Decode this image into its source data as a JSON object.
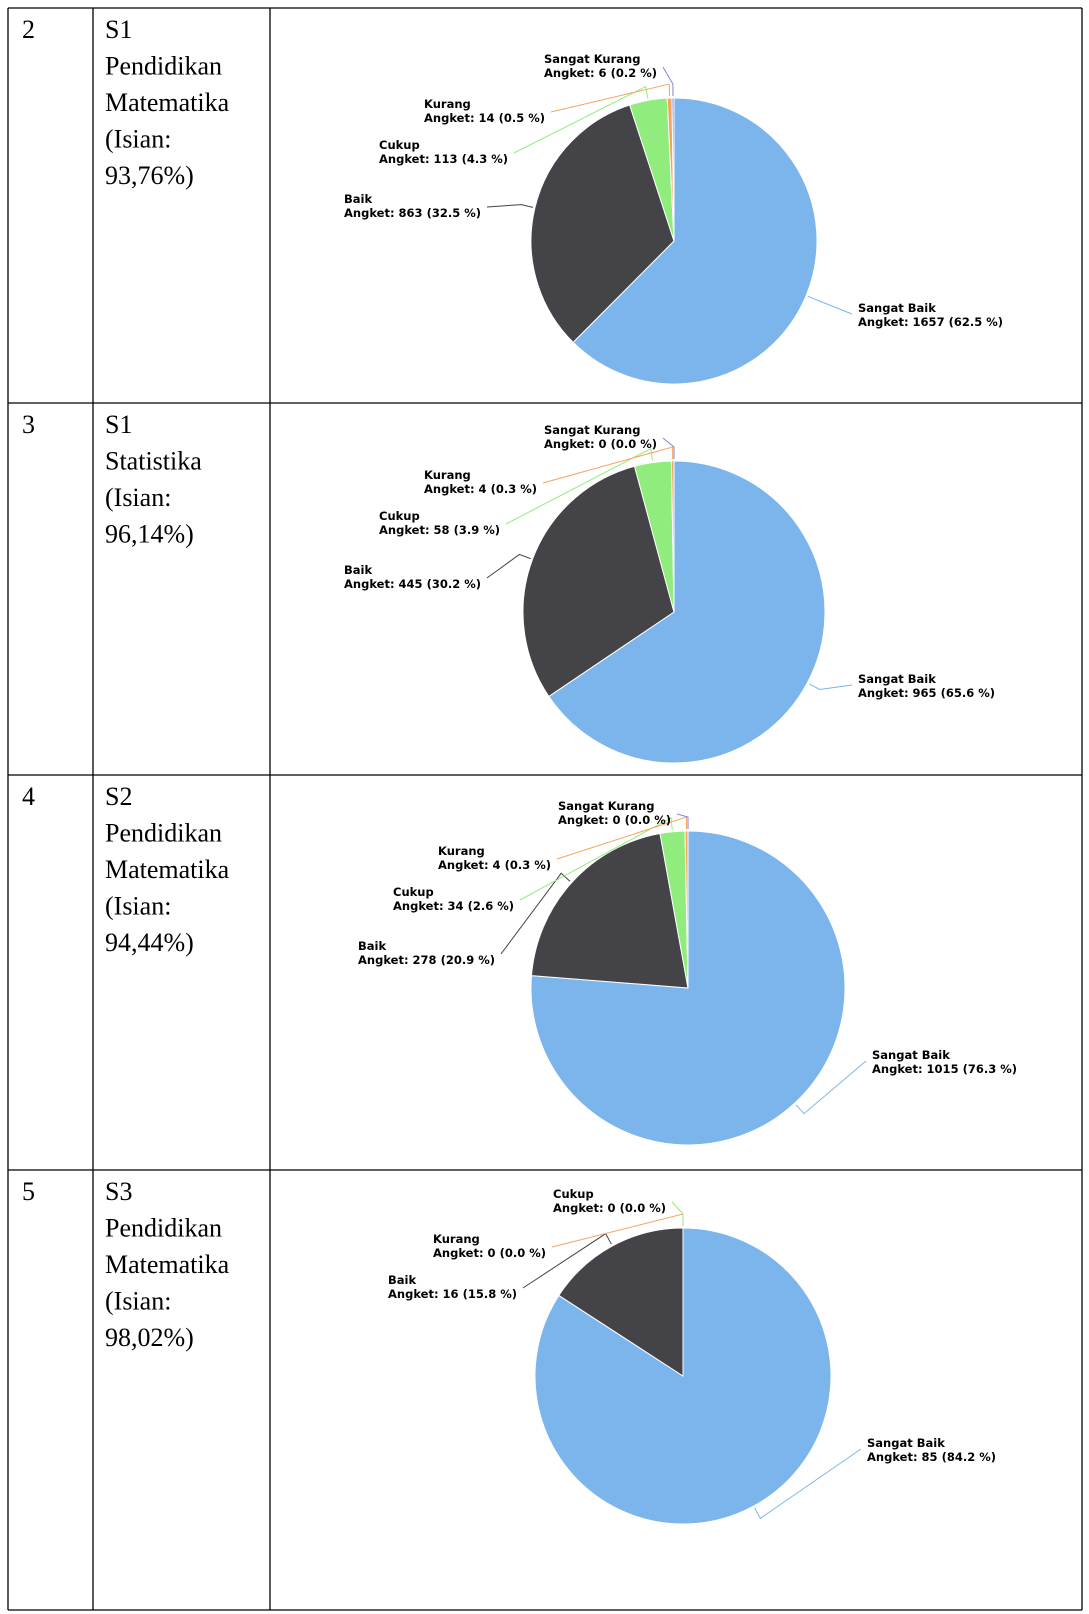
{
  "rows": [
    {
      "number": "2",
      "program": [
        "S1",
        "Pendidikan",
        "Matematika",
        "(Isian:",
        "93,76%)"
      ],
      "chart_data": {
        "type": "pie",
        "categories": [
          "Sangat Baik",
          "Baik",
          "Cukup",
          "Kurang",
          "Sangat Kurang"
        ],
        "values": [
          1657,
          863,
          113,
          14,
          6
        ],
        "value_labels": [
          "Angket: 1657 (62.5 %)",
          "Angket: 863 (32.5 %)",
          "Angket: 113 (4.3 %)",
          "Angket: 14 (0.5 %)",
          "Angket: 6 (0.2 %)"
        ],
        "colors": [
          "#7cb5ec",
          "#434348",
          "#90ed7d",
          "#f7a35c",
          "#8085e9"
        ]
      }
    },
    {
      "number": "3",
      "program": [
        "S1",
        "Statistika",
        "(Isian:",
        "96,14%)"
      ],
      "chart_data": {
        "type": "pie",
        "categories": [
          "Sangat Baik",
          "Baik",
          "Cukup",
          "Kurang",
          "Sangat Kurang"
        ],
        "values": [
          965,
          445,
          58,
          4,
          0
        ],
        "value_labels": [
          "Angket: 965 (65.6 %)",
          "Angket: 445 (30.2 %)",
          "Angket: 58 (3.9 %)",
          "Angket: 4 (0.3 %)",
          "Angket: 0 (0.0 %)"
        ],
        "colors": [
          "#7cb5ec",
          "#434348",
          "#90ed7d",
          "#f7a35c",
          "#8085e9"
        ]
      }
    },
    {
      "number": "4",
      "program": [
        "S2",
        "Pendidikan",
        "Matematika",
        "(Isian:",
        "94,44%)"
      ],
      "chart_data": {
        "type": "pie",
        "categories": [
          "Sangat Baik",
          "Baik",
          "Cukup",
          "Kurang",
          "Sangat Kurang"
        ],
        "values": [
          1015,
          278,
          34,
          4,
          0
        ],
        "value_labels": [
          "Angket: 1015 (76.3 %)",
          "Angket: 278 (20.9 %)",
          "Angket: 34 (2.6 %)",
          "Angket: 4 (0.3 %)",
          "Angket: 0 (0.0 %)"
        ],
        "colors": [
          "#7cb5ec",
          "#434348",
          "#90ed7d",
          "#f7a35c",
          "#8085e9"
        ]
      }
    },
    {
      "number": "5",
      "program": [
        "S3",
        "Pendidikan",
        "Matematika",
        "(Isian:",
        "98,02%)"
      ],
      "chart_data": {
        "type": "pie",
        "categories": [
          "Sangat Baik",
          "Baik",
          "Kurang",
          "Cukup"
        ],
        "values": [
          85,
          16,
          0,
          0
        ],
        "value_labels": [
          "Angket: 85 (84.2 %)",
          "Angket: 16 (15.8 %)",
          "Angket: 0 (0.0 %)",
          "Angket: 0 (0.0 %)"
        ],
        "colors": [
          "#7cb5ec",
          "#434348",
          "#f7a35c",
          "#90ed7d"
        ]
      }
    }
  ]
}
